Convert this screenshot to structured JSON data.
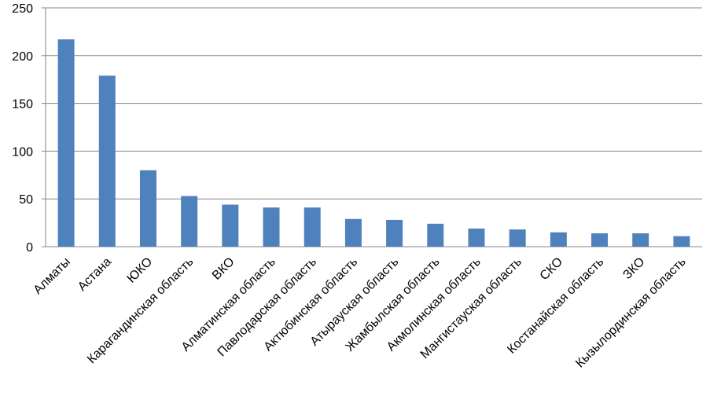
{
  "chart_data": {
    "type": "bar",
    "categories": [
      "Алматы",
      "Астана",
      "ЮКО",
      "Карагандинская  область",
      "ВКО",
      "Алматинская  область",
      "Павлодарская  область",
      "Актюбинская  область",
      "Атырауская  область",
      "Жамбылская  область",
      "Акмолинская  область",
      "Мангистауская  область",
      "СКО",
      "Костанайская  область",
      "ЗКО",
      "Кызылординская  область"
    ],
    "values": [
      217,
      179,
      80,
      53,
      44,
      41,
      41,
      29,
      28,
      24,
      19,
      18,
      15,
      14,
      14,
      11
    ],
    "color": "#4f81bd",
    "ylim": [
      0,
      250
    ],
    "yticks": [
      0,
      50,
      100,
      150,
      200,
      250
    ],
    "grid": true
  }
}
